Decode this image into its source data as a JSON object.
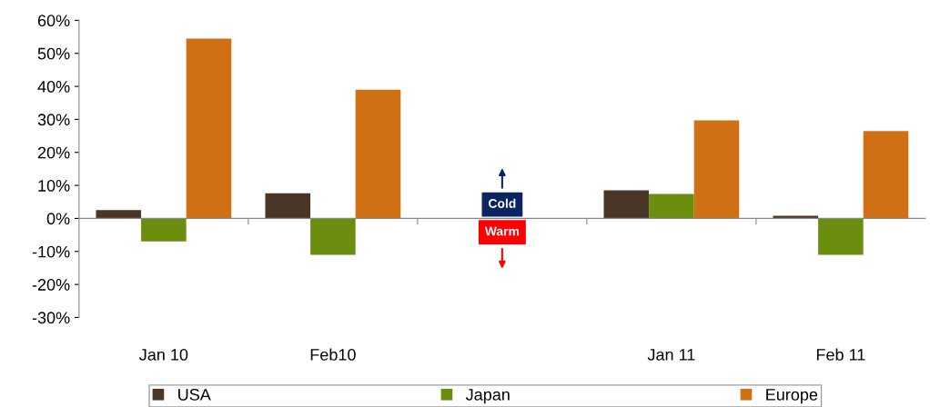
{
  "chart_data": {
    "type": "bar",
    "categories": [
      "Jan 10",
      "Feb10",
      null,
      "Jan 11",
      "Feb 11"
    ],
    "series": [
      {
        "name": "USA",
        "color": "#4a3626",
        "values": [
          2.5,
          7.6,
          null,
          8.5,
          0.8
        ]
      },
      {
        "name": "Japan",
        "color": "#6b8e0f",
        "values": [
          -7.0,
          -11.0,
          null,
          7.4,
          -11.0
        ]
      },
      {
        "name": "Europe",
        "color": "#d07014",
        "values": [
          54.5,
          39.0,
          null,
          29.7,
          26.5
        ]
      }
    ],
    "ylim": [
      -30,
      60
    ],
    "yticks": [
      {
        "value": -30,
        "label": "-30%"
      },
      {
        "value": -20,
        "label": "-20%"
      },
      {
        "value": -10,
        "label": "-10%"
      },
      {
        "value": 0,
        "label": "0%"
      },
      {
        "value": 10,
        "label": "10%"
      },
      {
        "value": 20,
        "label": "20%"
      },
      {
        "value": 30,
        "label": "30%"
      },
      {
        "value": 40,
        "label": "40%"
      },
      {
        "value": 50,
        "label": "50%"
      },
      {
        "value": 60,
        "label": "60%"
      }
    ],
    "annotations": [
      "Cold",
      "Warm"
    ],
    "legend": "bottom"
  }
}
